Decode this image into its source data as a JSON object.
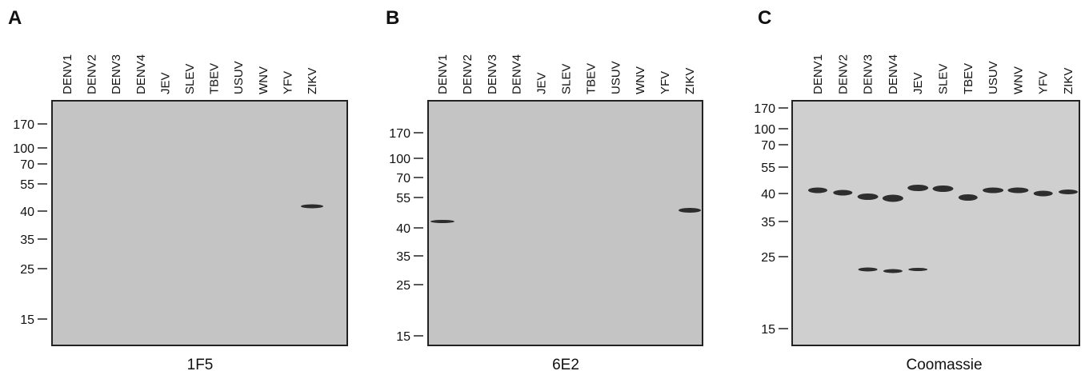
{
  "panels": [
    {
      "letter": "A",
      "lanes": [
        "DENV1",
        "DENV2",
        "DENV3",
        "DENV4",
        "JEV",
        "SLEV",
        "TBEV",
        "USUV",
        "WNV",
        "YFV",
        "ZIKV"
      ],
      "markers": [
        "170",
        "100",
        "70",
        "55",
        "40",
        "35",
        "25",
        "15"
      ],
      "caption": "1F5"
    },
    {
      "letter": "B",
      "lanes": [
        "DENV1",
        "DENV2",
        "DENV3",
        "DENV4",
        "JEV",
        "SLEV",
        "TBEV",
        "USUV",
        "WNV",
        "YFV",
        "ZIKV"
      ],
      "markers": [
        "170",
        "100",
        "70",
        "55",
        "40",
        "35",
        "25",
        "15"
      ],
      "caption": "6E2"
    },
    {
      "letter": "C",
      "lanes": [
        "DENV1",
        "DENV2",
        "DENV3",
        "DENV4",
        "JEV",
        "SLEV",
        "TBEV",
        "USUV",
        "WNV",
        "YFV",
        "ZIKV"
      ],
      "markers": [
        "170",
        "100",
        "70",
        "55",
        "40",
        "35",
        "25",
        "15"
      ],
      "caption": "Coomassie"
    }
  ]
}
